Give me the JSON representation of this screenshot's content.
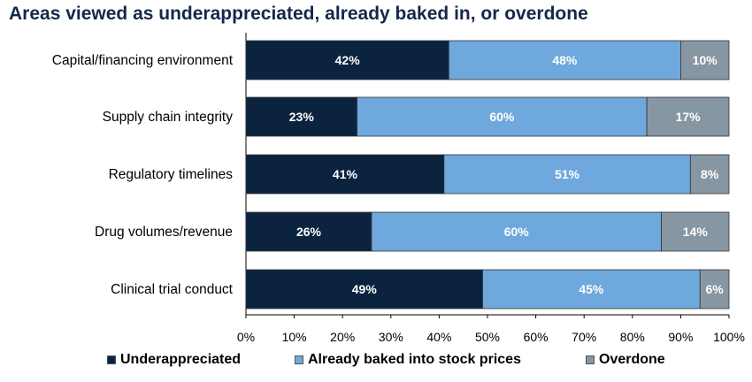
{
  "title": "Areas viewed as underappreciated, already baked in, or overdone",
  "chart_data": {
    "type": "bar",
    "orientation": "horizontal",
    "stacked": true,
    "title": "Areas viewed as underappreciated, already baked in, or overdone",
    "categories": [
      "Capital/financing environment",
      "Supply chain integrity",
      "Regulatory timelines",
      "Drug volumes/revenue",
      "Clinical trial conduct"
    ],
    "series": [
      {
        "name": "Underappreciated",
        "color": "#0c2340",
        "label_color": "#ffffff",
        "values": [
          42,
          23,
          41,
          26,
          49
        ]
      },
      {
        "name": "Already baked into stock prices",
        "color": "#6fa8dc",
        "label_color": "#ffffff",
        "values": [
          48,
          60,
          51,
          60,
          45
        ]
      },
      {
        "name": "Overdone",
        "color": "#8796a3",
        "label_color": "#ffffff",
        "values": [
          10,
          17,
          8,
          14,
          6
        ]
      }
    ],
    "xlim": [
      0,
      100
    ],
    "x_ticks": [
      "0%",
      "10%",
      "20%",
      "30%",
      "40%",
      "50%",
      "60%",
      "70%",
      "80%",
      "90%",
      "100%"
    ],
    "value_suffix": "%",
    "legend_position": "bottom",
    "grid": false
  }
}
